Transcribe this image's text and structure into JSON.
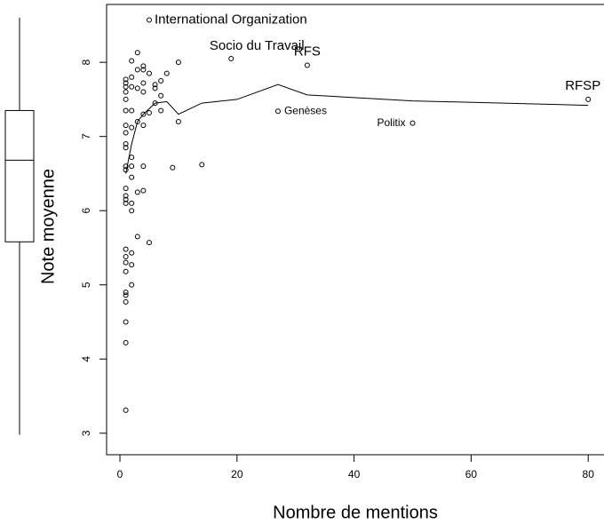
{
  "chart_data": {
    "type": "scatter",
    "x_label": "Nombre de mentions",
    "y_label": "Note moyenne",
    "xlim": [
      -2.28,
      82.7
    ],
    "ylim": [
      2.71,
      8.78
    ],
    "xticks": [
      0,
      20,
      40,
      60,
      80
    ],
    "yticks": [
      3,
      4,
      5,
      6,
      7,
      8
    ],
    "x": [
      5,
      19,
      32,
      27,
      50,
      80,
      1,
      1,
      1,
      1,
      1,
      1,
      1,
      1,
      1,
      1,
      1,
      1,
      1,
      1,
      1,
      1,
      1,
      1,
      1,
      1,
      1,
      1,
      1,
      1,
      1,
      1,
      2,
      2,
      2,
      2,
      2,
      2,
      2,
      2,
      2,
      2,
      2,
      2,
      2,
      3,
      3,
      3,
      3,
      3,
      3,
      4,
      4,
      4,
      4,
      4,
      4,
      4,
      4,
      5,
      5,
      5,
      6,
      6,
      6,
      7,
      7,
      7,
      8,
      9,
      10,
      10,
      14
    ],
    "values": [
      8.57,
      8.05,
      7.96,
      7.34,
      7.18,
      7.5,
      3.31,
      4.22,
      4.5,
      4.77,
      4.86,
      4.9,
      5.18,
      5.3,
      5.38,
      5.48,
      6.1,
      6.2,
      6.3,
      6.55,
      6.6,
      6.85,
      6.9,
      7.05,
      7.15,
      7.35,
      7.5,
      7.6,
      7.67,
      7.72,
      7.77,
      6.15,
      5.0,
      5.27,
      5.43,
      6.0,
      6.1,
      6.45,
      6.6,
      6.72,
      7.12,
      7.35,
      7.67,
      7.8,
      8.02,
      5.65,
      6.25,
      7.2,
      7.65,
      7.9,
      8.13,
      6.27,
      6.6,
      7.15,
      7.3,
      7.6,
      7.72,
      7.9,
      7.95,
      5.57,
      7.32,
      7.85,
      7.45,
      7.65,
      7.7,
      7.35,
      7.55,
      7.75,
      7.85,
      6.58,
      7.2,
      8.0,
      6.62
    ],
    "point_labels": [
      "International Organization",
      "Socio du Travail",
      "RFS",
      "Genèses",
      "Politix",
      "RFSP",
      null,
      null,
      null,
      null,
      null,
      null,
      null,
      null,
      null,
      null,
      null,
      null,
      null,
      null,
      null,
      null,
      null,
      null,
      null,
      null,
      null,
      null,
      null,
      null,
      null,
      null,
      null,
      null,
      null,
      null,
      null,
      null,
      null,
      null,
      null,
      null,
      null,
      null,
      null,
      null,
      null,
      null,
      null,
      null,
      null,
      null,
      null,
      null,
      null,
      null,
      null,
      null,
      null,
      null,
      null,
      null,
      null,
      null,
      null,
      null,
      null,
      null,
      null,
      null,
      null,
      null,
      null
    ],
    "smooth": {
      "x": [
        1,
        2,
        3,
        4,
        6,
        8,
        10,
        14,
        20,
        27,
        32,
        50,
        80
      ],
      "values": [
        6.5,
        6.9,
        7.2,
        7.3,
        7.45,
        7.47,
        7.3,
        7.45,
        7.5,
        7.7,
        7.56,
        7.48,
        7.42
      ]
    },
    "boxplot": {
      "whisker_low": 2.98,
      "q1": 5.58,
      "median": 6.68,
      "q3": 7.35,
      "whisker_high": 8.6
    }
  }
}
